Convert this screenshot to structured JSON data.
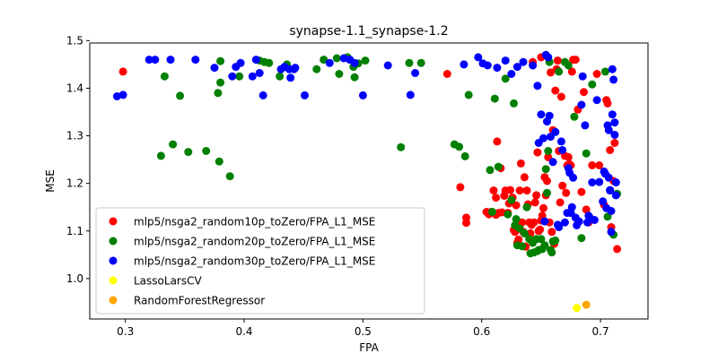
{
  "chart_data": {
    "type": "scatter",
    "title": "synapse-1.1_synapse-1.2",
    "xlabel": "FPA",
    "ylabel": "MSE",
    "xlim": [
      0.27,
      0.74
    ],
    "ylim": [
      0.915,
      1.495
    ],
    "xticks": [
      0.3,
      0.4,
      0.5,
      0.6,
      0.7
    ],
    "yticks": [
      1.0,
      1.1,
      1.2,
      1.3,
      1.4,
      1.5
    ],
    "grid": false,
    "legend_position": "lower-left",
    "series": [
      {
        "name": "mlp5/nsga2_random10p_toZero/FPA_L1_MSE",
        "color": "#ff0000",
        "points": [
          [
            0.298,
            1.435
          ],
          [
            0.571,
            1.43
          ],
          [
            0.582,
            1.192
          ],
          [
            0.587,
            1.128
          ],
          [
            0.587,
            1.117
          ],
          [
            0.604,
            1.14
          ],
          [
            0.606,
            1.135
          ],
          [
            0.608,
            1.14
          ],
          [
            0.61,
            1.185
          ],
          [
            0.612,
            1.17
          ],
          [
            0.612,
            1.134
          ],
          [
            0.613,
            1.288
          ],
          [
            0.614,
            1.138
          ],
          [
            0.616,
            1.232
          ],
          [
            0.617,
            1.139
          ],
          [
            0.619,
            1.174
          ],
          [
            0.62,
            1.185
          ],
          [
            0.622,
            1.138
          ],
          [
            0.623,
            1.158
          ],
          [
            0.624,
            1.186
          ],
          [
            0.626,
            1.17
          ],
          [
            0.627,
            1.102
          ],
          [
            0.628,
            1.098
          ],
          [
            0.629,
            1.154
          ],
          [
            0.63,
            1.075
          ],
          [
            0.631,
            1.082
          ],
          [
            0.632,
            1.185
          ],
          [
            0.633,
            1.242
          ],
          [
            0.634,
            1.118
          ],
          [
            0.635,
            1.098
          ],
          [
            0.636,
            1.213
          ],
          [
            0.637,
            1.067
          ],
          [
            0.638,
            1.185
          ],
          [
            0.639,
            1.156
          ],
          [
            0.64,
            1.118
          ],
          [
            0.641,
            1.095
          ],
          [
            0.642,
            1.113
          ],
          [
            0.643,
            1.455
          ],
          [
            0.644,
            1.118
          ],
          [
            0.645,
            1.16
          ],
          [
            0.646,
            1.175
          ],
          [
            0.647,
            1.265
          ],
          [
            0.648,
            1.1
          ],
          [
            0.649,
            1.103
          ],
          [
            0.65,
            1.465
          ],
          [
            0.65,
            1.122
          ],
          [
            0.651,
            1.132
          ],
          [
            0.652,
            1.148
          ],
          [
            0.653,
            1.213
          ],
          [
            0.654,
            1.175
          ],
          [
            0.655,
            1.205
          ],
          [
            0.656,
            1.255
          ],
          [
            0.657,
            1.118
          ],
          [
            0.658,
            1.433
          ],
          [
            0.659,
            1.098
          ],
          [
            0.66,
            1.312
          ],
          [
            0.661,
            1.073
          ],
          [
            0.662,
            1.395
          ],
          [
            0.663,
            1.44
          ],
          [
            0.664,
            1.458
          ],
          [
            0.665,
            1.268
          ],
          [
            0.666,
            1.16
          ],
          [
            0.667,
            1.382
          ],
          [
            0.668,
            1.195
          ],
          [
            0.67,
            1.258
          ],
          [
            0.671,
            1.18
          ],
          [
            0.672,
            1.238
          ],
          [
            0.673,
            1.255
          ],
          [
            0.674,
            1.24
          ],
          [
            0.675,
            1.238
          ],
          [
            0.676,
            1.435
          ],
          [
            0.677,
            1.46
          ],
          [
            0.679,
            1.46
          ],
          [
            0.681,
            1.355
          ],
          [
            0.684,
            1.182
          ],
          [
            0.686,
            1.392
          ],
          [
            0.688,
            1.145
          ],
          [
            0.69,
            1.118
          ],
          [
            0.693,
            1.238
          ],
          [
            0.697,
            1.43
          ],
          [
            0.699,
            1.238
          ],
          [
            0.703,
            1.155
          ],
          [
            0.705,
            1.375
          ],
          [
            0.706,
            1.368
          ],
          [
            0.708,
            1.27
          ],
          [
            0.709,
            1.108
          ],
          [
            0.711,
            1.205
          ],
          [
            0.712,
            1.285
          ],
          [
            0.714,
            1.062
          ]
        ]
      },
      {
        "name": "mlp5/nsga2_random20p_toZero/FPA_L1_MSE",
        "color": "#008000",
        "points": [
          [
            0.33,
            1.258
          ],
          [
            0.333,
            1.425
          ],
          [
            0.34,
            1.282
          ],
          [
            0.346,
            1.384
          ],
          [
            0.353,
            1.266
          ],
          [
            0.368,
            1.268
          ],
          [
            0.378,
            1.39
          ],
          [
            0.379,
            1.246
          ],
          [
            0.38,
            1.412
          ],
          [
            0.38,
            1.457
          ],
          [
            0.388,
            1.215
          ],
          [
            0.396,
            1.425
          ],
          [
            0.413,
            1.458
          ],
          [
            0.417,
            1.455
          ],
          [
            0.421,
            1.453
          ],
          [
            0.43,
            1.425
          ],
          [
            0.436,
            1.45
          ],
          [
            0.461,
            1.44
          ],
          [
            0.467,
            1.46
          ],
          [
            0.478,
            1.463
          ],
          [
            0.48,
            1.43
          ],
          [
            0.487,
            1.465
          ],
          [
            0.492,
            1.445
          ],
          [
            0.493,
            1.423
          ],
          [
            0.496,
            1.452
          ],
          [
            0.502,
            1.458
          ],
          [
            0.532,
            1.276
          ],
          [
            0.539,
            1.453
          ],
          [
            0.549,
            1.453
          ],
          [
            0.577,
            1.282
          ],
          [
            0.581,
            1.277
          ],
          [
            0.586,
            1.257
          ],
          [
            0.589,
            1.386
          ],
          [
            0.607,
            1.228
          ],
          [
            0.609,
            1.14
          ],
          [
            0.611,
            1.378
          ],
          [
            0.614,
            1.235
          ],
          [
            0.62,
            1.42
          ],
          [
            0.622,
            1.135
          ],
          [
            0.625,
            1.165
          ],
          [
            0.627,
            1.368
          ],
          [
            0.628,
            1.112
          ],
          [
            0.629,
            1.125
          ],
          [
            0.63,
            1.07
          ],
          [
            0.632,
            1.105
          ],
          [
            0.634,
            1.068
          ],
          [
            0.636,
            1.095
          ],
          [
            0.638,
            1.15
          ],
          [
            0.64,
            1.083
          ],
          [
            0.641,
            1.053
          ],
          [
            0.643,
            1.075
          ],
          [
            0.644,
            1.055
          ],
          [
            0.646,
            1.083
          ],
          [
            0.647,
            1.058
          ],
          [
            0.648,
            1.06
          ],
          [
            0.65,
            1.083
          ],
          [
            0.651,
            1.062
          ],
          [
            0.653,
            1.07
          ],
          [
            0.654,
            1.23
          ],
          [
            0.655,
            1.18
          ],
          [
            0.656,
            1.268
          ],
          [
            0.657,
            1.455
          ],
          [
            0.658,
            1.06
          ],
          [
            0.659,
            1.055
          ],
          [
            0.66,
            1.078
          ],
          [
            0.662,
            1.08
          ],
          [
            0.665,
            1.435
          ],
          [
            0.67,
            1.455
          ],
          [
            0.673,
            1.448
          ],
          [
            0.678,
            1.34
          ],
          [
            0.684,
            1.085
          ],
          [
            0.688,
            1.263
          ],
          [
            0.693,
            1.408
          ],
          [
            0.704,
            1.435
          ],
          [
            0.706,
            1.13
          ],
          [
            0.711,
            1.092
          ],
          [
            0.714,
            1.178
          ]
        ]
      },
      {
        "name": "mlp5/nsga2_random30p_toZero/FPA_L1_MSE",
        "color": "#0000ff",
        "points": [
          [
            0.293,
            1.383
          ],
          [
            0.298,
            1.386
          ],
          [
            0.32,
            1.46
          ],
          [
            0.325,
            1.46
          ],
          [
            0.338,
            1.46
          ],
          [
            0.359,
            1.46
          ],
          [
            0.375,
            1.443
          ],
          [
            0.39,
            1.425
          ],
          [
            0.393,
            1.445
          ],
          [
            0.397,
            1.453
          ],
          [
            0.407,
            1.425
          ],
          [
            0.41,
            1.46
          ],
          [
            0.413,
            1.432
          ],
          [
            0.416,
            1.385
          ],
          [
            0.431,
            1.44
          ],
          [
            0.434,
            1.445
          ],
          [
            0.438,
            1.44
          ],
          [
            0.439,
            1.422
          ],
          [
            0.442,
            1.44
          ],
          [
            0.443,
            1.443
          ],
          [
            0.451,
            1.385
          ],
          [
            0.472,
            1.453
          ],
          [
            0.484,
            1.463
          ],
          [
            0.489,
            1.46
          ],
          [
            0.493,
            1.453
          ],
          [
            0.5,
            1.385
          ],
          [
            0.521,
            1.448
          ],
          [
            0.54,
            1.386
          ],
          [
            0.544,
            1.432
          ],
          [
            0.585,
            1.45
          ],
          [
            0.597,
            1.465
          ],
          [
            0.601,
            1.452
          ],
          [
            0.605,
            1.448
          ],
          [
            0.613,
            1.443
          ],
          [
            0.62,
            1.458
          ],
          [
            0.625,
            1.43
          ],
          [
            0.63,
            1.445
          ],
          [
            0.635,
            1.455
          ],
          [
            0.643,
            1.448
          ],
          [
            0.647,
            1.405
          ],
          [
            0.648,
            1.285
          ],
          [
            0.65,
            1.345
          ],
          [
            0.652,
            1.295
          ],
          [
            0.653,
            1.12
          ],
          [
            0.654,
            1.47
          ],
          [
            0.655,
            1.33
          ],
          [
            0.656,
            1.465
          ],
          [
            0.657,
            1.342
          ],
          [
            0.658,
            1.298
          ],
          [
            0.66,
            1.245
          ],
          [
            0.662,
            1.308
          ],
          [
            0.664,
            1.113
          ],
          [
            0.665,
            1.108
          ],
          [
            0.667,
            1.288
          ],
          [
            0.668,
            1.27
          ],
          [
            0.67,
            1.118
          ],
          [
            0.672,
            1.138
          ],
          [
            0.673,
            1.232
          ],
          [
            0.674,
            1.222
          ],
          [
            0.675,
            1.138
          ],
          [
            0.676,
            1.15
          ],
          [
            0.677,
            1.212
          ],
          [
            0.679,
            1.128
          ],
          [
            0.68,
            1.112
          ],
          [
            0.682,
            1.12
          ],
          [
            0.684,
            1.365
          ],
          [
            0.685,
            1.425
          ],
          [
            0.687,
            1.322
          ],
          [
            0.689,
            1.118
          ],
          [
            0.69,
            1.132
          ],
          [
            0.691,
            1.128
          ],
          [
            0.693,
            1.202
          ],
          [
            0.695,
            1.123
          ],
          [
            0.697,
            1.375
          ],
          [
            0.699,
            1.203
          ],
          [
            0.702,
            1.162
          ],
          [
            0.703,
            1.225
          ],
          [
            0.704,
            1.22
          ],
          [
            0.705,
            1.148
          ],
          [
            0.706,
            1.322
          ],
          [
            0.707,
            1.312
          ],
          [
            0.707,
            1.212
          ],
          [
            0.708,
            1.186
          ],
          [
            0.708,
            1.185
          ],
          [
            0.709,
            1.142
          ],
          [
            0.709,
            1.098
          ],
          [
            0.71,
            1.345
          ],
          [
            0.71,
            1.44
          ],
          [
            0.711,
            1.418
          ],
          [
            0.712,
            1.302
          ],
          [
            0.712,
            1.328
          ],
          [
            0.713,
            1.175
          ],
          [
            0.713,
            1.202
          ]
        ]
      },
      {
        "name": "LassoLarsCV",
        "color": "#ffff00",
        "points": [
          [
            0.68,
            0.938
          ]
        ]
      },
      {
        "name": "RandomForestRegressor",
        "color": "#ffa500",
        "points": [
          [
            0.688,
            0.945
          ]
        ]
      }
    ]
  }
}
